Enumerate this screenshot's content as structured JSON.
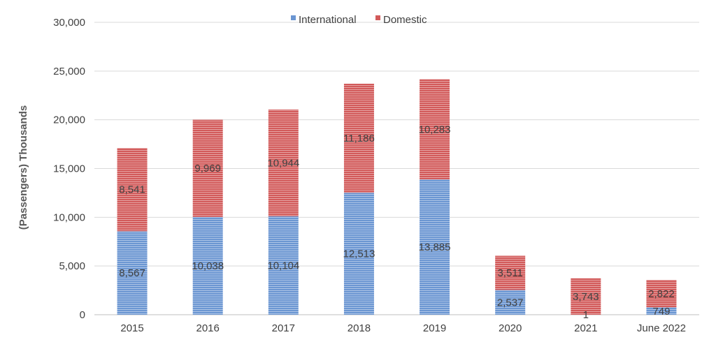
{
  "colors": {
    "international": "#6b96d2",
    "domestic": "#d25a5a",
    "stripe": "#ffffff"
  },
  "chart_data": {
    "type": "bar",
    "stacked": true,
    "title": "",
    "xlabel": "",
    "ylabel": "(Passengers) Thousands",
    "ylim": [
      0,
      30000
    ],
    "yticks": [
      0,
      5000,
      10000,
      15000,
      20000,
      25000,
      30000
    ],
    "ytick_labels": [
      "0",
      "5,000",
      "10,000",
      "15,000",
      "20,000",
      "25,000",
      "30,000"
    ],
    "grid": true,
    "legend_position": "top",
    "categories": [
      "2015",
      "2016",
      "2017",
      "2018",
      "2019",
      "2020",
      "2021",
      "June 2022"
    ],
    "series": [
      {
        "name": "International",
        "values": [
          8567,
          10038,
          10104,
          12513,
          13885,
          2537,
          1,
          749
        ],
        "labels": [
          "8,567",
          "10,038",
          "10,104",
          "12,513",
          "13,885",
          "2,537",
          "1",
          "749"
        ]
      },
      {
        "name": "Domestic",
        "values": [
          8541,
          9969,
          10944,
          11186,
          10283,
          3511,
          3743,
          2822
        ],
        "labels": [
          "8,541",
          "9,969",
          "10,944",
          "11,186",
          "10,283",
          "3,511",
          "3,743",
          "2,822"
        ]
      }
    ]
  }
}
